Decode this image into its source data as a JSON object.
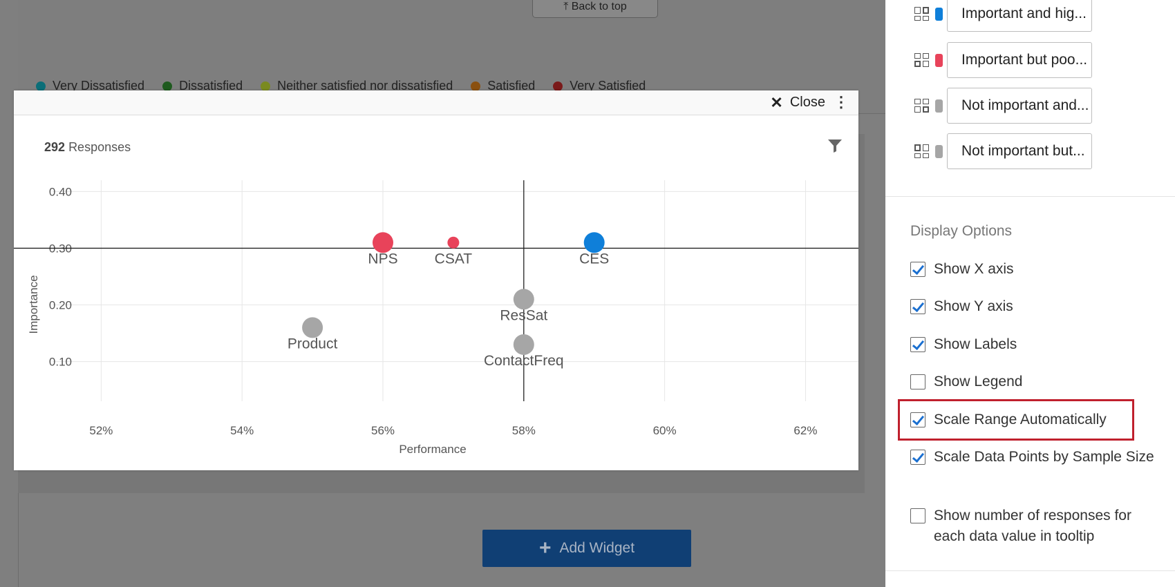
{
  "background": {
    "back_to_top": "⤒ Back to top",
    "legend": [
      {
        "label": "Very Dissatisfied",
        "color": "#0b6e78"
      },
      {
        "label": "Dissatisfied",
        "color": "#1e5a1e"
      },
      {
        "label": "Neither satisfied nor dissatisfied",
        "color": "#7a8a20"
      },
      {
        "label": "Satisfied",
        "color": "#8a5010"
      },
      {
        "label": "Very Satisfied",
        "color": "#7a1a1a"
      }
    ],
    "add_widget_label": "Add Widget"
  },
  "modal": {
    "close_label": "Close",
    "responses_count": "292",
    "responses_label": "Responses"
  },
  "chart_data": {
    "type": "scatter",
    "xlabel": "Performance",
    "ylabel": "Importance",
    "xlim": [
      51.8,
      62.3
    ],
    "ylim": [
      0.03,
      0.42
    ],
    "x_ticks": [
      52,
      54,
      56,
      58,
      60,
      62
    ],
    "x_tick_labels": [
      "52%",
      "54%",
      "56%",
      "58%",
      "60%",
      "62%"
    ],
    "y_ticks": [
      0.1,
      0.2,
      0.3,
      0.4
    ],
    "y_tick_labels": [
      "0.10",
      "0.20",
      "0.30",
      "0.40"
    ],
    "crosshair": {
      "x": 58,
      "y": 0.3
    },
    "grid": true,
    "points": [
      {
        "label": "NPS",
        "x": 56,
        "y": 0.31,
        "size": "large",
        "color": "#e8435a"
      },
      {
        "label": "CSAT",
        "x": 57,
        "y": 0.31,
        "size": "small",
        "color": "#e8435a"
      },
      {
        "label": "CES",
        "x": 59,
        "y": 0.31,
        "size": "large",
        "color": "#0f7fd9"
      },
      {
        "label": "ResSat",
        "x": 58,
        "y": 0.21,
        "size": "large",
        "color": "#a6a6a6"
      },
      {
        "label": "Product",
        "x": 55,
        "y": 0.16,
        "size": "large",
        "color": "#a6a6a6"
      },
      {
        "label": "ContactFreq",
        "x": 58,
        "y": 0.13,
        "size": "large",
        "color": "#a6a6a6"
      }
    ]
  },
  "sidebar": {
    "quadrants": [
      {
        "label": "Important and hig...",
        "color": "#0f7fd9"
      },
      {
        "label": "Important but poo...",
        "color": "#e8435a"
      },
      {
        "label": "Not important and...",
        "color": "#a6a6a6"
      },
      {
        "label": "Not important but...",
        "color": "#a6a6a6"
      }
    ],
    "display_options_title": "Display Options",
    "options": [
      {
        "label": "Show X axis",
        "checked": true
      },
      {
        "label": "Show Y axis",
        "checked": true
      },
      {
        "label": "Show Labels",
        "checked": true
      },
      {
        "label": "Show Legend",
        "checked": false
      },
      {
        "label": "Scale Range Automatically",
        "checked": true
      },
      {
        "label": "Scale Data Points by Sample Size",
        "checked": true
      },
      {
        "label": "Show number of responses for each data value in tooltip",
        "checked": false
      }
    ]
  }
}
